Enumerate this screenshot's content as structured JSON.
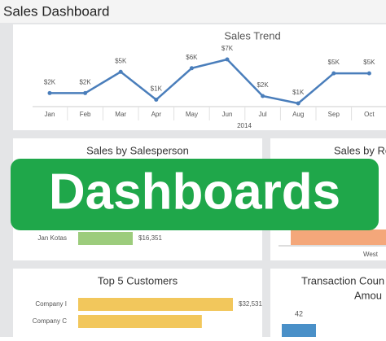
{
  "header": {
    "title": "Sales Dashboard"
  },
  "banner": {
    "text": "Dashboards"
  },
  "chart_data": [
    {
      "type": "line",
      "title": "Sales Trend",
      "x_label": "2014",
      "color": "#4a7ebb",
      "categories": [
        "Jan",
        "Feb",
        "Mar",
        "Apr",
        "May",
        "Jun",
        "Jul",
        "Aug",
        "Sep",
        "Oct"
      ],
      "values": [
        2200,
        2200,
        5100,
        1300,
        5600,
        6800,
        1800,
        800,
        4900,
        4900
      ],
      "value_labels": [
        "$2K",
        "$2K",
        "$5K",
        "$1K",
        "$6K",
        "$7K",
        "$2K",
        "$1K",
        "$5K",
        "$5K"
      ]
    },
    {
      "type": "hbar",
      "title": "Sales by Salesperson",
      "color": "#9ccc7c",
      "categories": [
        "Jan Kotas"
      ],
      "values": [
        16351
      ],
      "value_labels": [
        "$16,351"
      ]
    },
    {
      "type": "region",
      "title": "Sales by Re",
      "color": "#f4a77a",
      "categories": [
        "West"
      ]
    },
    {
      "type": "hbar",
      "title": "Top 5 Customers",
      "color": "#f2c75c",
      "categories": [
        "Company I",
        "Company C"
      ],
      "values": [
        32531,
        26000
      ],
      "value_labels": [
        "$32,531",
        null
      ]
    },
    {
      "type": "vbar",
      "title": "Transaction Coun",
      "subtitle": "Amou",
      "color": "#4a90c8",
      "values": [
        42
      ]
    }
  ]
}
